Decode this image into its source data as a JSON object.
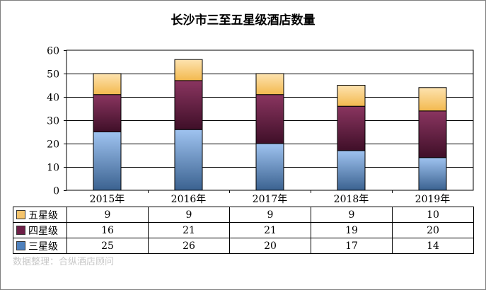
{
  "chart_data": {
    "type": "bar",
    "stacked": true,
    "title": "长沙市三至五星级酒店数量",
    "categories": [
      "2015年",
      "2016年",
      "2017年",
      "2018年",
      "2019年"
    ],
    "series": [
      {
        "name": "三星级",
        "values": [
          25,
          26,
          20,
          17,
          14
        ],
        "color": "#4f81bd"
      },
      {
        "name": "四星级",
        "values": [
          16,
          21,
          21,
          19,
          20
        ],
        "color": "#6e1f47"
      },
      {
        "name": "五星级",
        "values": [
          9,
          9,
          9,
          9,
          10
        ],
        "color": "#f5c46c"
      }
    ],
    "table_rows_order": [
      "五星级",
      "四星级",
      "三星级"
    ],
    "ylim": [
      0,
      60
    ],
    "yticks": [
      0,
      10,
      20,
      30,
      40,
      50,
      60
    ],
    "grid": true,
    "legend": "data-table"
  },
  "watermark": "数据整理：合纵酒店顾问"
}
